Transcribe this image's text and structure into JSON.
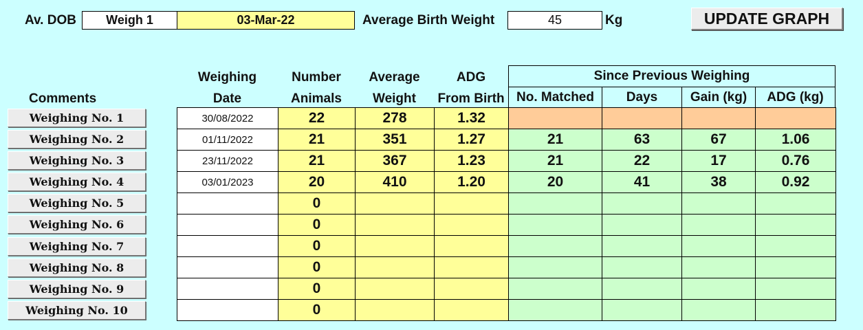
{
  "header": {
    "av_dob_label": "Av. DOB",
    "weigh_select": "Weigh 1",
    "dob_date": "03-Mar-22",
    "birth_weight_label": "Average Birth Weight",
    "birth_weight_value": "45",
    "unit": "Kg",
    "update_button": "UPDATE GRAPH"
  },
  "columns": {
    "comments": "Comments",
    "weighing_1": "Weighing",
    "weighing_2": "Date",
    "number_1": "Number",
    "number_2": "Animals",
    "avg_1": "Average",
    "avg_2": "Weight",
    "adg_1": "ADG",
    "adg_2": "From Birth",
    "since_previous": "Since Previous Weighing",
    "matched": "No. Matched",
    "days": "Days",
    "gain": "Gain (kg)",
    "adg_kg": "ADG (kg)"
  },
  "rows": [
    {
      "button": "Weighing No. 1",
      "date": "30/08/2022",
      "animals": "22",
      "avg": "278",
      "adg": "1.32",
      "matched": "",
      "days": "",
      "gain": "",
      "adg_prev": ""
    },
    {
      "button": "Weighing No. 2",
      "date": "01/11/2022",
      "animals": "21",
      "avg": "351",
      "adg": "1.27",
      "matched": "21",
      "days": "63",
      "gain": "67",
      "adg_prev": "1.06"
    },
    {
      "button": "Weighing No. 3",
      "date": "23/11/2022",
      "animals": "21",
      "avg": "367",
      "adg": "1.23",
      "matched": "21",
      "days": "22",
      "gain": "17",
      "adg_prev": "0.76"
    },
    {
      "button": "Weighing No. 4",
      "date": "03/01/2023",
      "animals": "20",
      "avg": "410",
      "adg": "1.20",
      "matched": "20",
      "days": "41",
      "gain": "38",
      "adg_prev": "0.92"
    },
    {
      "button": "Weighing No. 5",
      "date": "",
      "animals": "0",
      "avg": "",
      "adg": "",
      "matched": "",
      "days": "",
      "gain": "",
      "adg_prev": ""
    },
    {
      "button": "Weighing No. 6",
      "date": "",
      "animals": "0",
      "avg": "",
      "adg": "",
      "matched": "",
      "days": "",
      "gain": "",
      "adg_prev": ""
    },
    {
      "button": "Weighing No. 7",
      "date": "",
      "animals": "0",
      "avg": "",
      "adg": "",
      "matched": "",
      "days": "",
      "gain": "",
      "adg_prev": ""
    },
    {
      "button": "Weighing No. 8",
      "date": "",
      "animals": "0",
      "avg": "",
      "adg": "",
      "matched": "",
      "days": "",
      "gain": "",
      "adg_prev": ""
    },
    {
      "button": "Weighing No. 9",
      "date": "",
      "animals": "0",
      "avg": "",
      "adg": "",
      "matched": "",
      "days": "",
      "gain": "",
      "adg_prev": ""
    },
    {
      "button": "Weighing No. 10",
      "date": "",
      "animals": "0",
      "avg": "",
      "adg": "",
      "matched": "",
      "days": "",
      "gain": "",
      "adg_prev": ""
    }
  ],
  "colors": {
    "background": "#ccffff",
    "input_yellow": "#ffff99",
    "previous_green": "#ccffcc",
    "first_row_orange": "#ffcc99"
  }
}
